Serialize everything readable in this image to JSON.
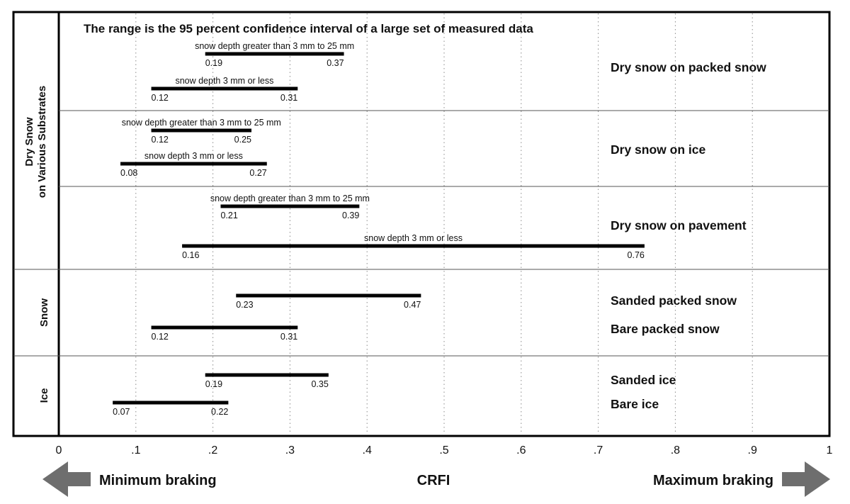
{
  "chart_data": {
    "type": "range-bar",
    "note": "The range is the 95 percent confidence interval of a large set of measured data",
    "xlim": [
      0,
      1
    ],
    "ticks": [
      "0",
      ".1",
      ".2",
      ".3",
      ".4",
      ".5",
      ".6",
      ".7",
      ".8",
      ".9",
      "1"
    ],
    "xlabel": "CRFI",
    "min_label": "Minimum braking",
    "max_label": "Maximum braking",
    "group_labels": [
      {
        "lines": [
          "Dry Snow",
          "on Various Substrates"
        ]
      },
      {
        "lines": [
          "Snow"
        ]
      },
      {
        "lines": [
          "Ice"
        ]
      }
    ],
    "rows": [
      {
        "label": "Dry snow on packed snow",
        "bars": [
          {
            "sublabel": "snow depth greater than 3 mm to 25 mm",
            "low": 0.19,
            "high": 0.37,
            "low_text": "0.19",
            "high_text": "0.37"
          },
          {
            "sublabel": "snow depth 3 mm or less",
            "low": 0.12,
            "high": 0.31,
            "low_text": "0.12",
            "high_text": "0.31"
          }
        ]
      },
      {
        "label": "Dry snow on ice",
        "bars": [
          {
            "sublabel": "snow depth greater than 3 mm to 25 mm",
            "low": 0.12,
            "high": 0.25,
            "low_text": "0.12",
            "high_text": "0.25"
          },
          {
            "sublabel": "snow depth 3 mm or less",
            "low": 0.08,
            "high": 0.27,
            "low_text": "0.08",
            "high_text": "0.27"
          }
        ]
      },
      {
        "label": "Dry snow on pavement",
        "bars": [
          {
            "sublabel": "snow depth greater than 3 mm to 25 mm",
            "low": 0.21,
            "high": 0.39,
            "low_text": "0.21",
            "high_text": "0.39"
          },
          {
            "sublabel": "snow depth 3 mm or less",
            "low": 0.16,
            "high": 0.76,
            "low_text": "0.16",
            "high_text": "0.76"
          }
        ]
      },
      {
        "label": "Sanded packed snow",
        "bars": [
          {
            "sublabel": "",
            "low": 0.23,
            "high": 0.47,
            "low_text": "0.23",
            "high_text": "0.47"
          }
        ]
      },
      {
        "label": "Bare packed snow",
        "bars": [
          {
            "sublabel": "",
            "low": 0.12,
            "high": 0.31,
            "low_text": "0.12",
            "high_text": "0.31"
          }
        ]
      },
      {
        "label": "Sanded ice",
        "bars": [
          {
            "sublabel": "",
            "low": 0.19,
            "high": 0.35,
            "low_text": "0.19",
            "high_text": "0.35"
          }
        ]
      },
      {
        "label": "Bare ice",
        "bars": [
          {
            "sublabel": "",
            "low": 0.07,
            "high": 0.22,
            "low_text": "0.07",
            "high_text": "0.22"
          }
        ]
      }
    ],
    "colors": {
      "bar": "#000000",
      "arrow": "#6e6e6e",
      "grid": "#8a8a8a"
    }
  }
}
